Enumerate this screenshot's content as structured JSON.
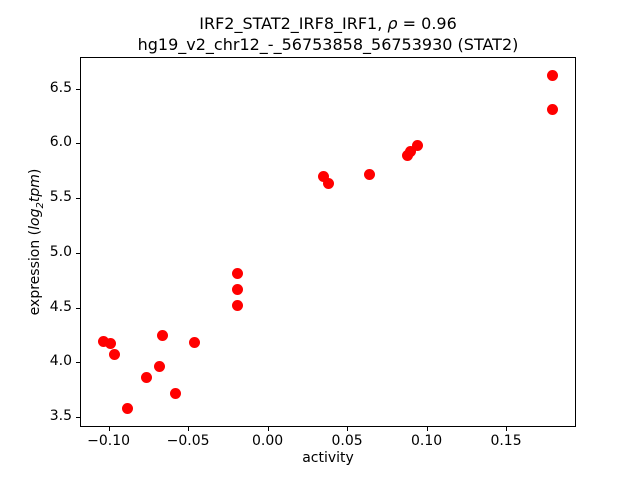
{
  "figure": {
    "title": {
      "line1_prefix": "IRF2_STAT2_IRF8_IRF1, ",
      "line1_rho": "ρ",
      "line1_suffix": " = 0.96",
      "line2": "hg19_v2_chr12_-_56753858_56753930 (STAT2)"
    },
    "xlabel": "activity",
    "ylabel_parts": {
      "prefix": "expression (",
      "italic_log": "log",
      "subscript": "2",
      "italic_tpm": "tpm",
      "suffix": ")"
    }
  },
  "chart_data": {
    "type": "scatter",
    "title": "IRF2_STAT2_IRF8_IRF1, ρ = 0.96",
    "subtitle": "hg19_v2_chr12_-_56753858_56753930 (STAT2)",
    "xlabel": "activity",
    "ylabel": "expression (log2 tpm)",
    "legend": null,
    "grid": false,
    "marker_color": "#ff0000",
    "marker_diameter_px": 11,
    "xlim": [
      -0.118,
      0.194
    ],
    "ylim": [
      3.41,
      6.79
    ],
    "x_ticks": {
      "values": [
        -0.1,
        -0.05,
        0.0,
        0.05,
        0.1,
        0.15
      ],
      "labels": [
        "−0.10",
        "−0.05",
        "0.00",
        "0.05",
        "0.10",
        "0.15"
      ]
    },
    "y_ticks": {
      "values": [
        3.5,
        4.0,
        4.5,
        5.0,
        5.5,
        6.0,
        6.5
      ],
      "labels": [
        "3.5",
        "4.0",
        "4.5",
        "5.0",
        "5.5",
        "6.0",
        "6.5"
      ]
    },
    "points": [
      [
        -0.103,
        4.19
      ],
      [
        -0.099,
        4.17
      ],
      [
        -0.096,
        4.07
      ],
      [
        -0.088,
        3.58
      ],
      [
        -0.076,
        3.86
      ],
      [
        -0.068,
        3.96
      ],
      [
        -0.066,
        4.25
      ],
      [
        -0.058,
        3.72
      ],
      [
        -0.046,
        4.18
      ],
      [
        -0.019,
        4.81
      ],
      [
        -0.019,
        4.67
      ],
      [
        -0.019,
        4.52
      ],
      [
        0.035,
        5.7
      ],
      [
        0.038,
        5.63
      ],
      [
        0.064,
        5.72
      ],
      [
        0.088,
        5.89
      ],
      [
        0.09,
        5.93
      ],
      [
        0.094,
        5.98
      ],
      [
        0.179,
        6.62
      ],
      [
        0.179,
        6.31
      ]
    ]
  }
}
